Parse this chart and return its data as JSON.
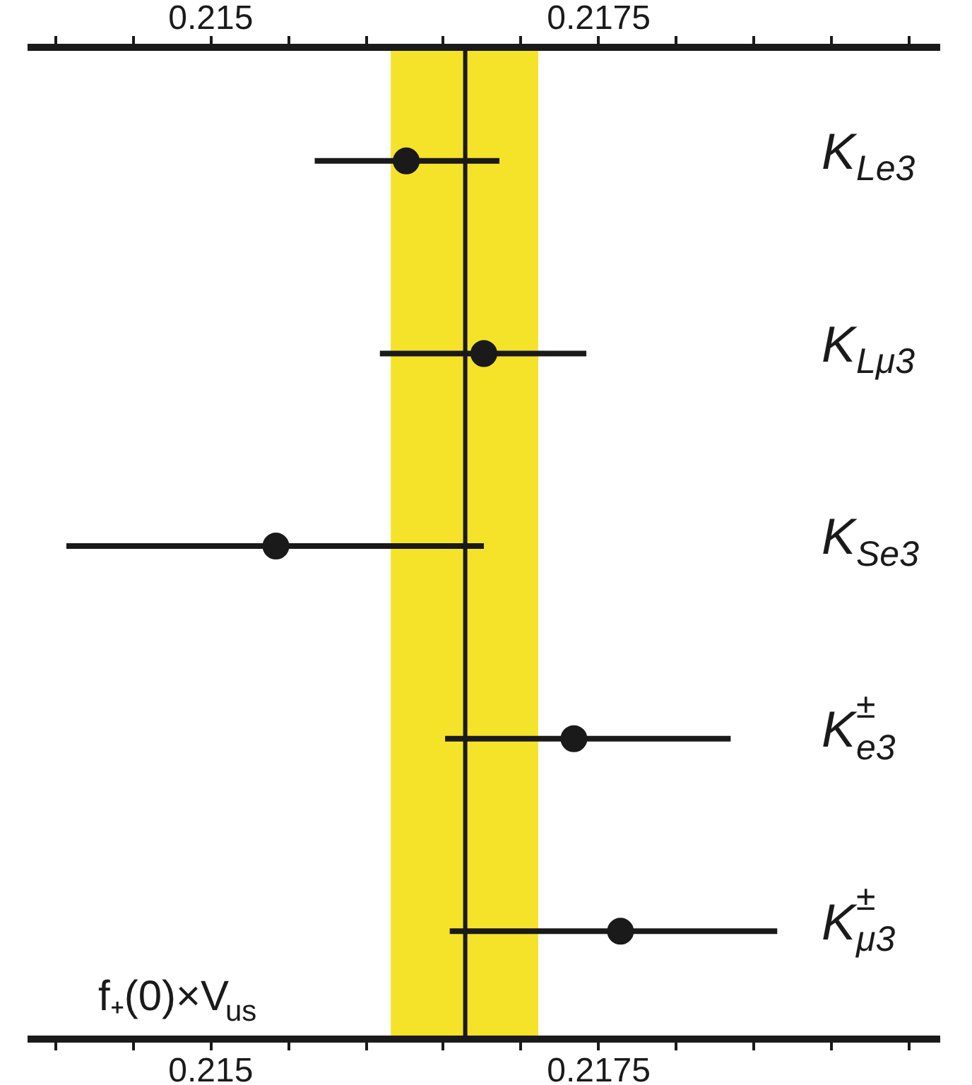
{
  "chart_data": {
    "type": "scatter",
    "orientation": "horizontal",
    "marker": "circle",
    "grid": false,
    "tick_labels": "x",
    "categories": [
      "K$_{Le3}$",
      "K$_{Lμ3}$",
      "K$_{Se3}$",
      "K$^{±}$$_{e3}$",
      "K$^{±}$$_{μ3}$"
    ],
    "values": [
      0.21626,
      0.21676,
      0.21542,
      0.21734,
      0.21764
    ],
    "errors": [
      [
        0.21567,
        0.21686
      ],
      [
        0.21609,
        0.21742
      ],
      [
        0.21407,
        0.21676
      ],
      [
        0.21651,
        0.21835
      ],
      [
        0.21654,
        0.21865
      ]
    ],
    "color": "#1a1a1a",
    "xlim": [
      0.21382,
      0.2197
    ],
    "xticks": [
      {
        "value": 0.214,
        "label": null
      },
      0.215,
      {
        "value": 0.2155,
        "label": null
      },
      {
        "value": 0.216,
        "label": null
      },
      {
        "value": 0.2165,
        "label": null
      },
      {
        "value": 0.217,
        "label": null
      },
      0.2175,
      {
        "value": 0.218,
        "label": null
      },
      {
        "value": 0.2185,
        "label": null
      },
      {
        "value": 0.219,
        "label": null
      },
      {
        "value": 0.2195,
        "label": null
      },
      {
        "value": 0.2145,
        "label": null
      }
    ],
    "x2lim": [
      0.21382,
      0.2197
    ],
    "x2ticks": [
      {
        "value": 0.214,
        "label": null
      },
      0.215,
      {
        "value": 0.2145,
        "label": null
      },
      {
        "value": 0.2155,
        "label": null
      },
      {
        "value": 0.216,
        "label": null
      },
      {
        "value": 0.2165,
        "label": null
      },
      {
        "value": 0.217,
        "label": null
      },
      0.2175,
      {
        "value": 0.218,
        "label": null
      },
      {
        "value": 0.2185,
        "label": null
      },
      {
        "value": 0.219,
        "label": null
      },
      {
        "value": 0.2195,
        "label": null
      }
    ],
    "ref_lines": [
      {
        "axis": "x",
        "value": 0.21664,
        "color": "#1a1a1a",
        "line_style": "solid"
      }
    ],
    "bands": [
      {
        "axis": "x",
        "from": 0.21616,
        "to": 0.21711,
        "color": "#f5e32a"
      }
    ],
    "annotations": [
      "f₊(0)×V$_{us}$"
    ]
  }
}
